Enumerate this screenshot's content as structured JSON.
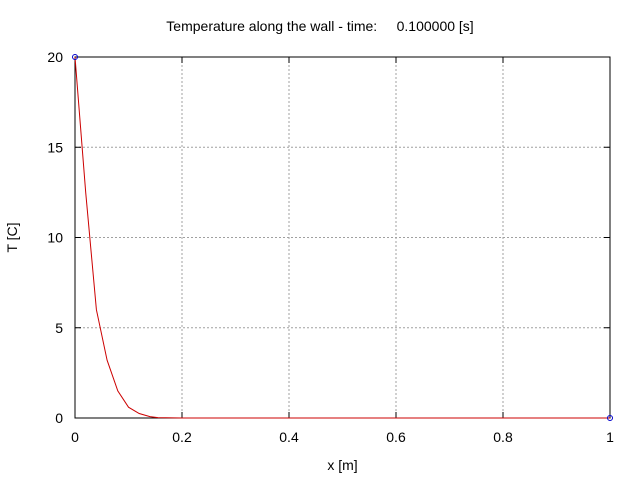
{
  "chart_data": {
    "type": "line",
    "title": "Temperature along the wall - time:     0.100000 [s]",
    "xlabel": "x [m]",
    "ylabel": "T [C]",
    "xlim": [
      0,
      1
    ],
    "ylim": [
      0,
      20
    ],
    "grid": true,
    "x_ticks": [
      "0",
      "0.2",
      "0.4",
      "0.6",
      "0.8",
      "1"
    ],
    "x_tick_values": [
      0,
      0.2,
      0.4,
      0.6,
      0.8,
      1
    ],
    "y_ticks": [
      "0",
      "5",
      "10",
      "15",
      "20"
    ],
    "y_tick_values": [
      0,
      5,
      10,
      15,
      20
    ],
    "series": [
      {
        "color": "#cc0000",
        "x": [
          0,
          0.02,
          0.04,
          0.06,
          0.08,
          0.1,
          0.12,
          0.14,
          0.155,
          0.2,
          0.4,
          0.6,
          0.8,
          1.0
        ],
        "values": [
          20,
          12.5,
          6.0,
          3.2,
          1.5,
          0.6,
          0.25,
          0.08,
          0.02,
          0,
          0,
          0,
          0,
          0
        ]
      }
    ],
    "boundary_markers": [
      {
        "x": 0,
        "y": 20
      },
      {
        "x": 1,
        "y": 0
      }
    ],
    "marker_color": "#0000cc"
  }
}
